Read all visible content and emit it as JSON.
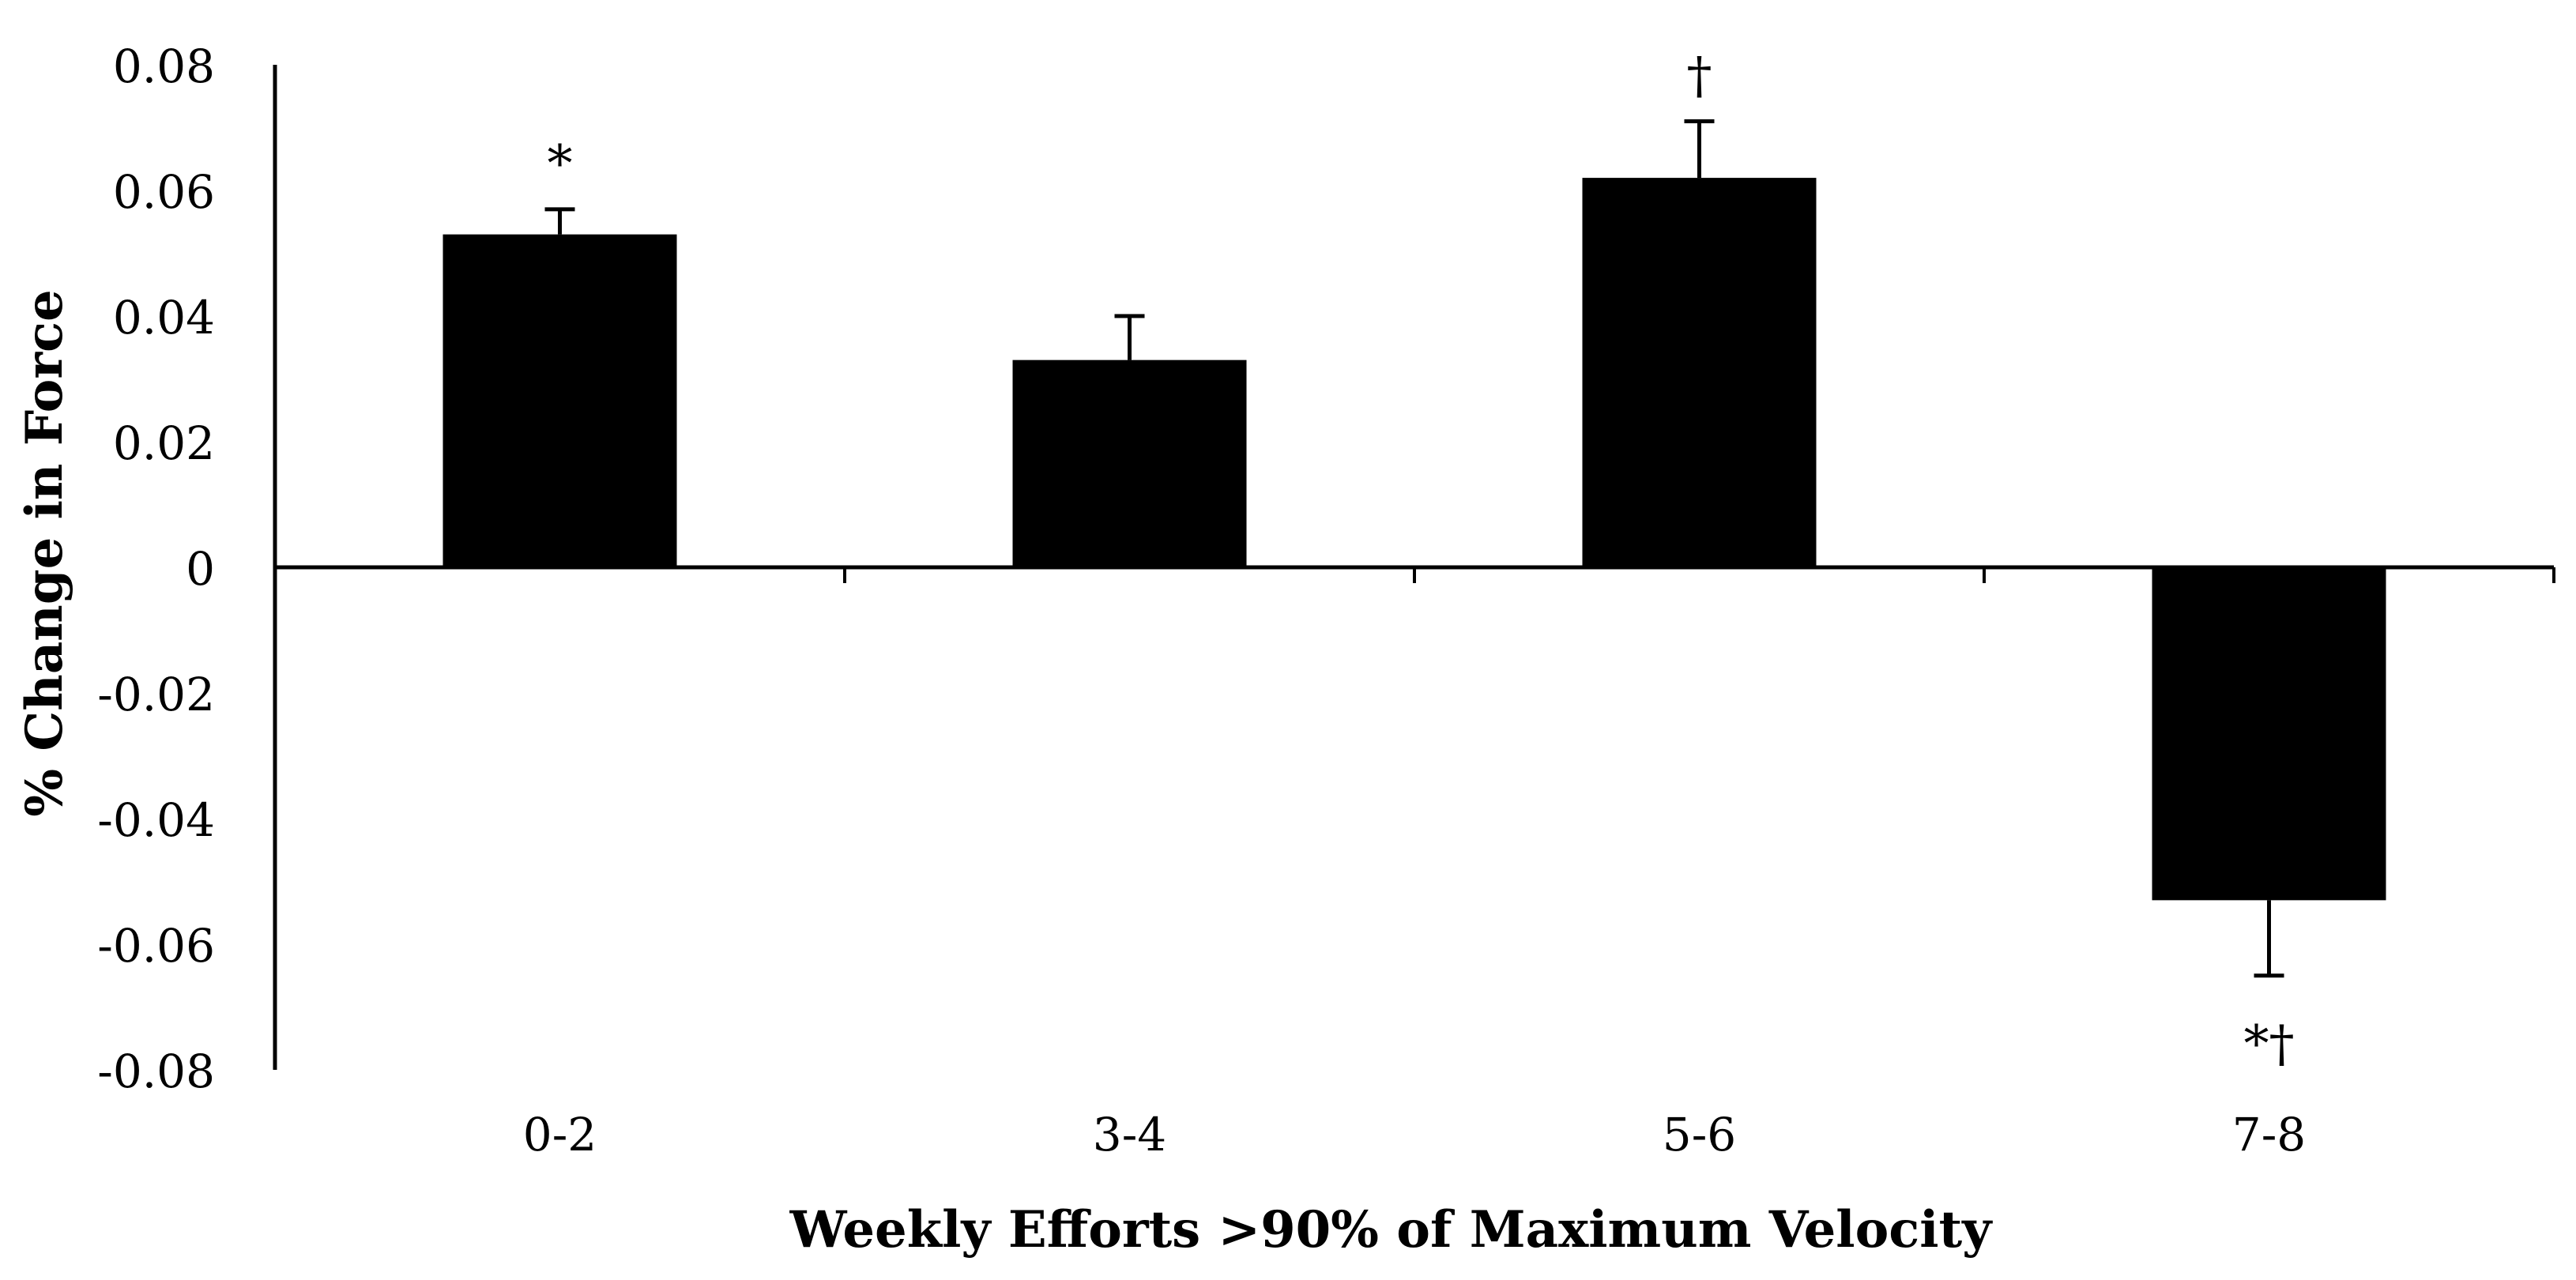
{
  "chart_data": {
    "type": "bar",
    "title": "",
    "xlabel": "Weekly Efforts >90% of Maximum Velocity",
    "ylabel": "% Change in Force",
    "categories": [
      "0-2",
      "3-4",
      "5-6",
      "7-8"
    ],
    "values": [
      0.053,
      0.033,
      0.062,
      -0.053
    ],
    "error": [
      0.004,
      0.007,
      0.009,
      0.012
    ],
    "annotations": [
      "*",
      "",
      "†",
      "*†"
    ],
    "ylim": [
      -0.08,
      0.08
    ],
    "yticks": [
      0.08,
      0.06,
      0.04,
      0.02,
      0,
      -0.02,
      -0.04,
      -0.06,
      -0.08
    ],
    "ytick_labels": [
      "0.08",
      "0.06",
      "0.04",
      "0.02",
      "0",
      "-0.02",
      "-0.04",
      "-0.06",
      "-0.08"
    ],
    "grid": false,
    "legend": "none",
    "colors": {
      "bar": "#000000",
      "axis": "#000000",
      "text": "#000000",
      "background": "#ffffff"
    }
  }
}
